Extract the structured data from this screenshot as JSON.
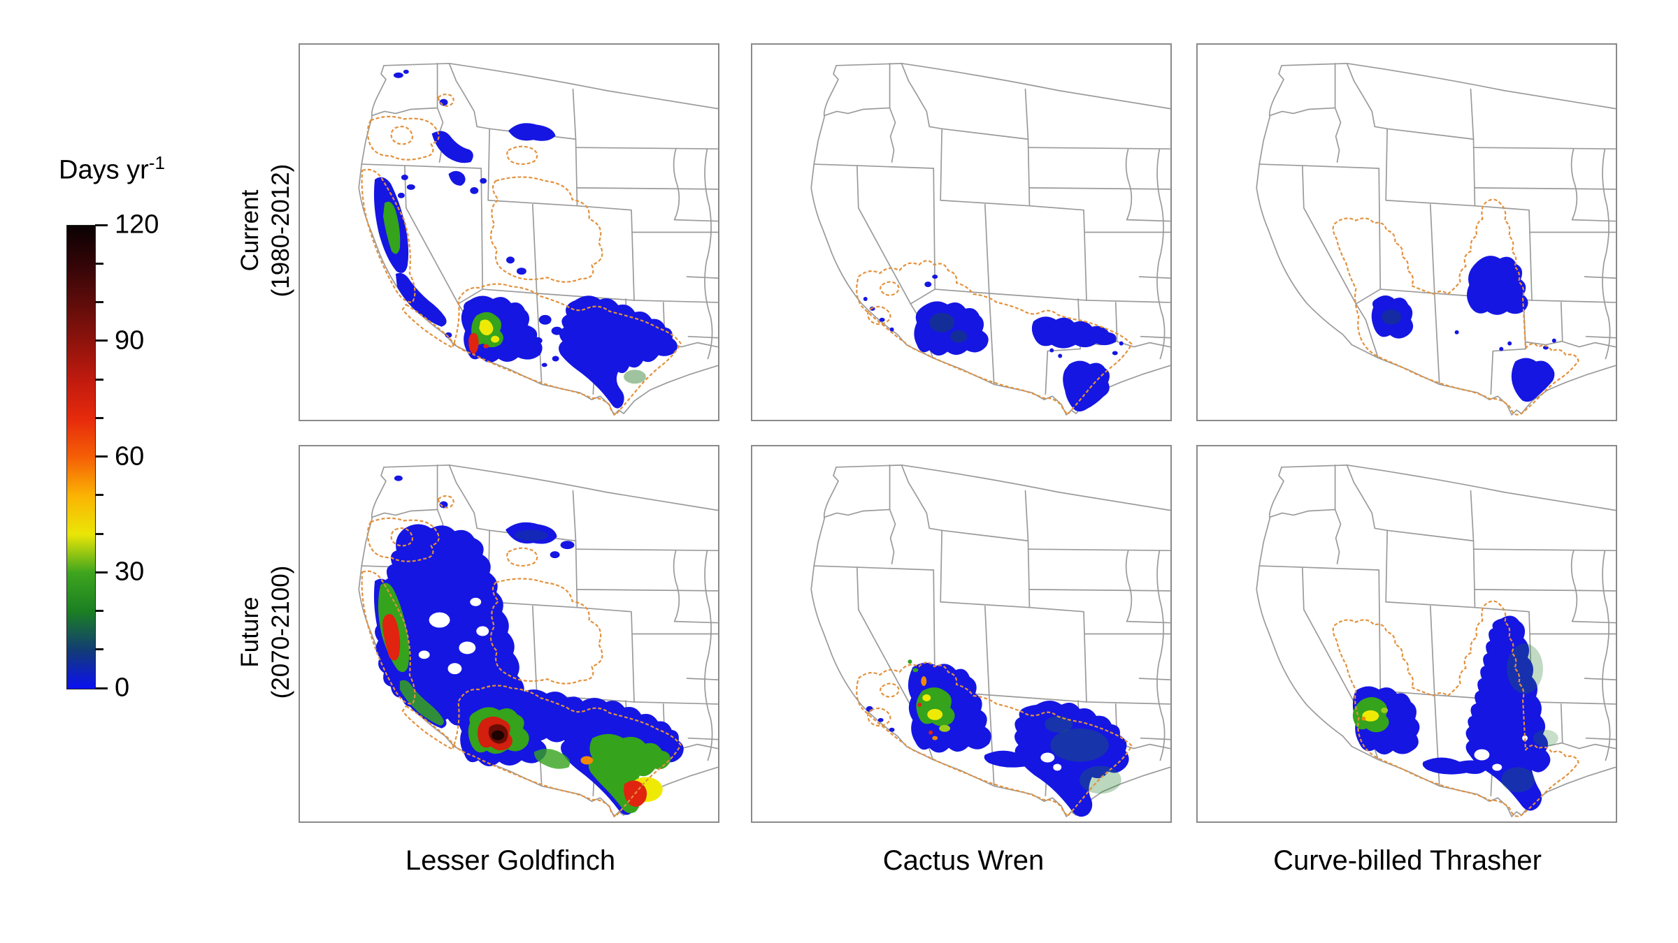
{
  "figure": {
    "legend": {
      "unit_label": "Days yr",
      "unit_exponent": "-1",
      "tick_labels": [
        "120",
        "90",
        "60",
        "30",
        "0"
      ],
      "value_range": [
        0,
        120
      ],
      "major_tick_step": 30,
      "minor_tick_step": 10,
      "gradient_top_to_bottom": [
        "#0a0103",
        "#330507",
        "#5e0c0a",
        "#8e130c",
        "#c01a0e",
        "#e62a0c",
        "#f55f06",
        "#fbb303",
        "#eae607",
        "#3da51e",
        "#1b7f22",
        "#123c74",
        "#0b10f2"
      ]
    },
    "rows": [
      {
        "name": "Current",
        "period": "(1980-2012)"
      },
      {
        "name": "Future",
        "period": "(2070-2100)"
      }
    ],
    "species": [
      "Lesser Goldfinch",
      "Cactus Wren",
      "Curve-billed Thrasher"
    ],
    "colors": {
      "presence_fill": "#1516e2",
      "range_outline": "#e2913c",
      "state_borders": "#9a9a9a",
      "background": "#ffffff"
    },
    "panels": [
      {
        "row": "Current",
        "species": "Lesser Goldfinch"
      },
      {
        "row": "Current",
        "species": "Cactus Wren"
      },
      {
        "row": "Current",
        "species": "Curve-billed Thrasher"
      },
      {
        "row": "Future",
        "species": "Lesser Goldfinch"
      },
      {
        "row": "Future",
        "species": "Cactus Wren"
      },
      {
        "row": "Future",
        "species": "Curve-billed Thrasher"
      }
    ]
  }
}
